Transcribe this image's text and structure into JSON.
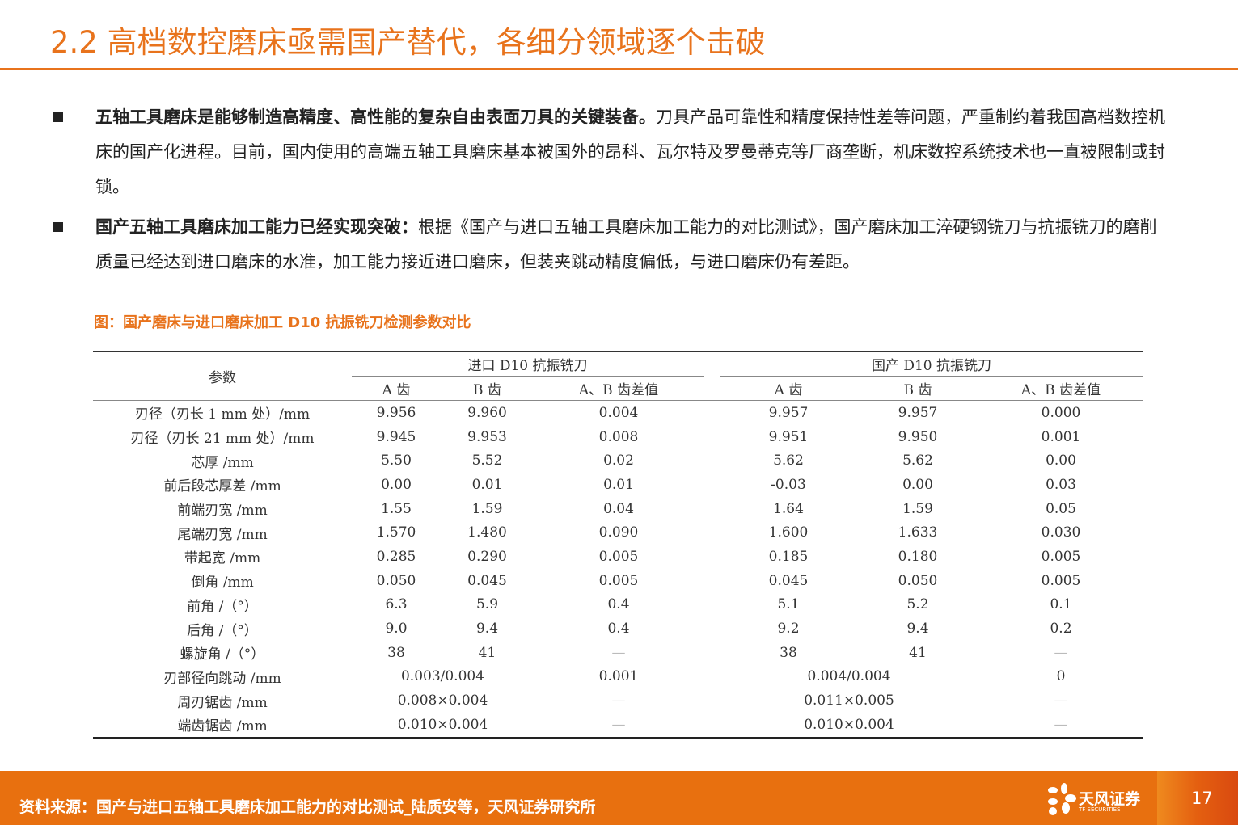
{
  "title": "2.2 高档数控磨床亟需国产替代，各细分领域逐个击破",
  "bullets": [
    {
      "bold": "五轴工具磨床是能够制造高精度、高性能的复杂自由表面刀具的关键装备。",
      "text": "刀具产品可靠性和精度保持性差等问题，严重制约着我国高档数控机床的国产化进程。目前，国内使用的高端五轴工具磨床基本被国外的昂科、瓦尔特及罗曼蒂克等厂商垄断，机床数控系统技术也一直被限制或封锁。"
    },
    {
      "bold": "国产五轴工具磨床加工能力已经实现突破：",
      "text": "根据《国产与进口五轴工具磨床加工能力的对比测试》，国产磨床加工淬硬钢铣刀与抗振铣刀的磨削质量已经达到进口磨床的水准，加工能力接近进口磨床，但装夹跳动精度偏低，与进口磨床仍有差距。"
    }
  ],
  "caption": "图：国产磨床与进口磨床加工 D10 抗振铣刀检测参数对比",
  "table": {
    "param_header": "参数",
    "group_imported": "进口 D10 抗振铣刀",
    "group_domestic": "国产 D10 抗振铣刀",
    "sub_headers": [
      "A 齿",
      "B 齿",
      "A、B 齿差值"
    ],
    "rows": [
      {
        "param": "刃径（刃长 1 mm 处）/mm",
        "imp": [
          "9.956",
          "9.960",
          "0.004"
        ],
        "dom": [
          "9.957",
          "9.957",
          "0.000"
        ]
      },
      {
        "param": "刃径（刃长 21 mm 处）/mm",
        "imp": [
          "9.945",
          "9.953",
          "0.008"
        ],
        "dom": [
          "9.951",
          "9.950",
          "0.001"
        ]
      },
      {
        "param": "芯厚 /mm",
        "imp": [
          "5.50",
          "5.52",
          "0.02"
        ],
        "dom": [
          "5.62",
          "5.62",
          "0.00"
        ]
      },
      {
        "param": "前后段芯厚差 /mm",
        "imp": [
          "0.00",
          "0.01",
          "0.01"
        ],
        "dom": [
          "-0.03",
          "0.00",
          "0.03"
        ]
      },
      {
        "param": "前端刃宽 /mm",
        "imp": [
          "1.55",
          "1.59",
          "0.04"
        ],
        "dom": [
          "1.64",
          "1.59",
          "0.05"
        ]
      },
      {
        "param": "尾端刃宽 /mm",
        "imp": [
          "1.570",
          "1.480",
          "0.090"
        ],
        "dom": [
          "1.600",
          "1.633",
          "0.030"
        ]
      },
      {
        "param": "带起宽 /mm",
        "imp": [
          "0.285",
          "0.290",
          "0.005"
        ],
        "dom": [
          "0.185",
          "0.180",
          "0.005"
        ]
      },
      {
        "param": "倒角 /mm",
        "imp": [
          "0.050",
          "0.045",
          "0.005"
        ],
        "dom": [
          "0.045",
          "0.050",
          "0.005"
        ]
      },
      {
        "param": "前角 /（°）",
        "imp": [
          "6.3",
          "5.9",
          "0.4"
        ],
        "dom": [
          "5.1",
          "5.2",
          "0.1"
        ]
      },
      {
        "param": "后角 /（°）",
        "imp": [
          "9.0",
          "9.4",
          "0.4"
        ],
        "dom": [
          "9.2",
          "9.4",
          "0.2"
        ]
      },
      {
        "param": "螺旋角 /（°）",
        "imp": [
          "38",
          "41",
          "—"
        ],
        "dom": [
          "38",
          "41",
          "—"
        ]
      },
      {
        "param": "刃部径向跳动 /mm",
        "imp": [
          "0.003/0.004",
          "0.001"
        ],
        "dom": [
          "0.004/0.004",
          "0"
        ],
        "merged": true
      },
      {
        "param": "周刃锯齿 /mm",
        "imp": [
          "0.008×0.004",
          "—"
        ],
        "dom": [
          "0.011×0.005",
          "—"
        ],
        "merged": true
      },
      {
        "param": "端齿锯齿 /mm",
        "imp": [
          "0.010×0.004",
          "—"
        ],
        "dom": [
          "0.010×0.004",
          "—"
        ],
        "merged": true
      }
    ]
  },
  "footer": {
    "source": "资料来源：国产与进口五轴工具磨床加工能力的对比测试_陆质安等，天风证券研究所",
    "logo_cn": "天风证券",
    "logo_en": "TF SECURITIES",
    "page": "17",
    "color": "#e8700f"
  },
  "accent": "#e8731c"
}
